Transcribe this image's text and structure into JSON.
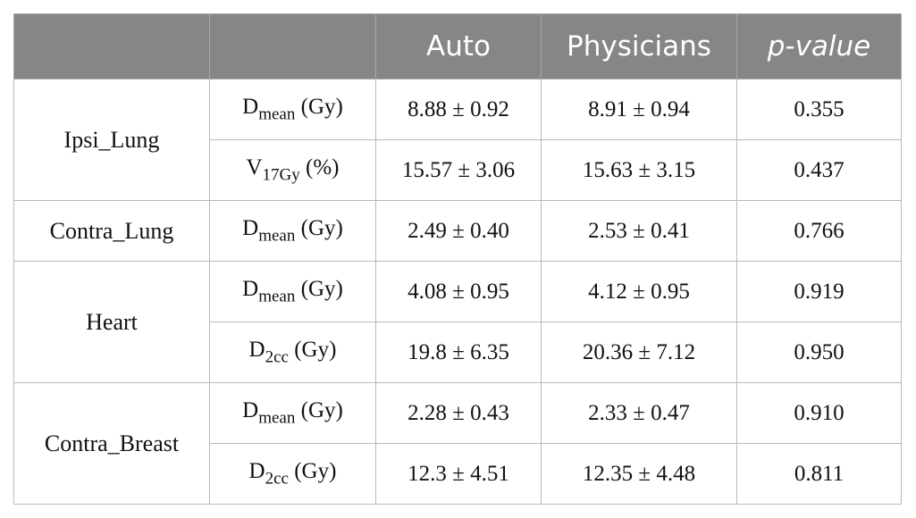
{
  "header": {
    "col0": "",
    "col1": "",
    "auto": "Auto",
    "physicians": "Physicians",
    "pvalue": "p-value"
  },
  "groups": [
    {
      "name": "Ipsi_Lung",
      "rows": [
        {
          "metric": "D",
          "sub": "mean",
          "unit": " (Gy)",
          "auto": "8.88 ± 0.92",
          "physicians": "8.91 ± 0.94",
          "p": "0.355"
        },
        {
          "metric": "V",
          "sub": "17Gy",
          "unit": " (%)",
          "auto": "15.57 ± 3.06",
          "physicians": "15.63 ± 3.15",
          "p": "0.437"
        }
      ]
    },
    {
      "name": "Contra_Lung",
      "rows": [
        {
          "metric": "D",
          "sub": "mean",
          "unit": " (Gy)",
          "auto": "2.49 ± 0.40",
          "physicians": "2.53 ± 0.41",
          "p": "0.766"
        }
      ]
    },
    {
      "name": "Heart",
      "rows": [
        {
          "metric": "D",
          "sub": "mean",
          "unit": " (Gy)",
          "auto": "4.08 ± 0.95",
          "physicians": "4.12 ± 0.95",
          "p": "0.919"
        },
        {
          "metric": "D",
          "sub": "2cc",
          "unit": " (Gy)",
          "auto": "19.8 ± 6.35",
          "physicians": "20.36 ± 7.12",
          "p": "0.950"
        }
      ]
    },
    {
      "name": "Contra_Breast",
      "rows": [
        {
          "metric": "D",
          "sub": "mean",
          "unit": " (Gy)",
          "auto": "2.28 ± 0.43",
          "physicians": "2.33 ± 0.47",
          "p": "0.910"
        },
        {
          "metric": "D",
          "sub": "2cc",
          "unit": " (Gy)",
          "auto": "12.3 ± 4.51",
          "physicians": "12.35 ± 4.48",
          "p": "0.811"
        }
      ]
    }
  ],
  "colors": {
    "header_bg": "#868686",
    "header_text": "#ffffff",
    "border": "#b9b9b9"
  }
}
